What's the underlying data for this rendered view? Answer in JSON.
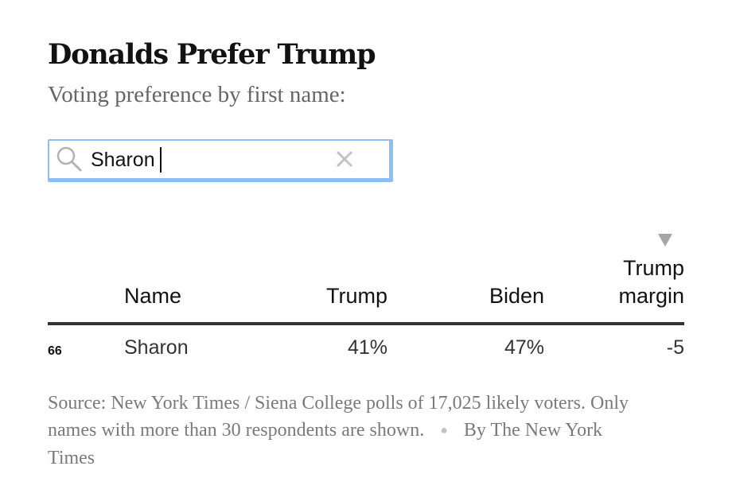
{
  "header": {
    "title": "Donalds Prefer Trump",
    "subtitle": "Voting preference by first name:"
  },
  "search": {
    "value": "Sharon",
    "placeholder": ""
  },
  "colors": {
    "search_border": "#8cc0f5",
    "text": "#121212",
    "muted": "#7a7a7a",
    "rule": "#333333",
    "sort_arrow": "#a6a6a6"
  },
  "icons": {
    "search": "search-icon",
    "clear": "close-icon",
    "sort": "sort-desc-icon"
  },
  "chart_data": {
    "type": "table",
    "columns": [
      "Name",
      "Trump",
      "Biden",
      "Trump margin"
    ],
    "sort_column": "Trump margin",
    "sort_order": "descending",
    "rows": [
      {
        "rank": "66",
        "name": "Sharon",
        "trump": "41%",
        "biden": "47%",
        "margin": "-5"
      }
    ]
  },
  "footer": {
    "source": "Source: New York Times / Siena College polls of 17,025 likely voters. Only names with more than 30 respondents are shown.",
    "credit": "By The New York Times"
  }
}
